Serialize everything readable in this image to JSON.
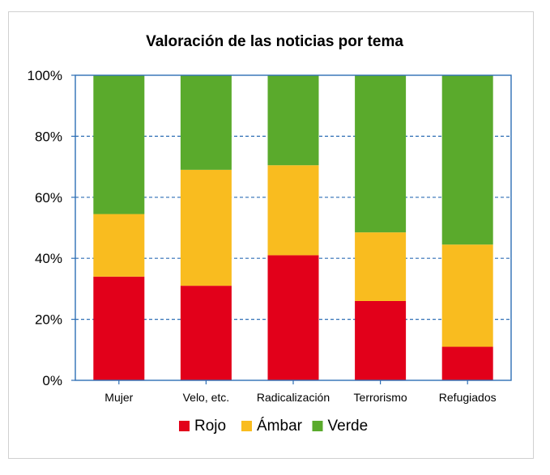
{
  "chart_data": {
    "type": "bar",
    "stacked": true,
    "title": "Valoración de las noticias por tema",
    "xlabel": "",
    "ylabel": "",
    "categories": [
      "Mujer",
      "Velo, etc.",
      "Radicalización",
      "Terrorismo",
      "Refugiados"
    ],
    "series": [
      {
        "name": "Rojo",
        "color": "#e2001a",
        "values": [
          34,
          31,
          41,
          26,
          11
        ]
      },
      {
        "name": "Ámbar",
        "color": "#f9bc1f",
        "values": [
          20.5,
          38,
          29.5,
          22.5,
          33.5
        ]
      },
      {
        "name": "Verde",
        "color": "#5aaa2c",
        "values": [
          45.5,
          31,
          29.5,
          51.5,
          55.5
        ]
      }
    ],
    "ylim": [
      0,
      100
    ],
    "yticks": [
      "0%",
      "20%",
      "40%",
      "60%",
      "80%",
      "100%"
    ],
    "grid": true,
    "grid_color": "#2e6fb5",
    "legend_position": "bottom"
  }
}
